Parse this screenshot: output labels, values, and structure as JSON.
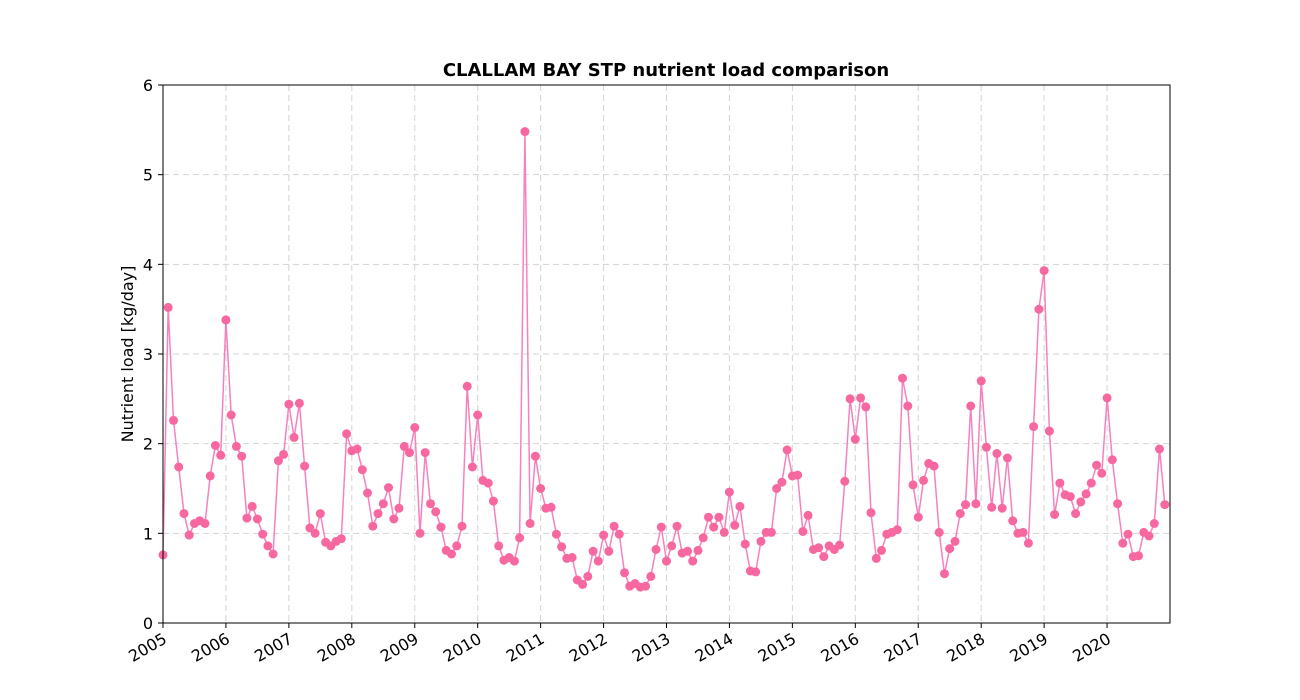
{
  "chart_data": {
    "type": "line",
    "title": "CLALLAM BAY STP nutrient load comparison",
    "xlabel": "",
    "ylabel": "Nutrient load [kg/day]",
    "ylim": [
      0,
      6
    ],
    "xlim": [
      "2005-01",
      "2021-01"
    ],
    "yticks": [
      "0",
      "1",
      "2",
      "3",
      "4",
      "5",
      "6"
    ],
    "xticks": [
      "2005",
      "2006",
      "2007",
      "2008",
      "2009",
      "2010",
      "2011",
      "2012",
      "2013",
      "2014",
      "2015",
      "2016",
      "2017",
      "2018",
      "2019",
      "2020"
    ],
    "grid": true,
    "line_color": "#f781bf",
    "marker_color": "#f768a1",
    "series": [
      {
        "x": [
          "2005-01",
          "2005-02",
          "2005-03",
          "2005-04",
          "2005-05",
          "2005-06",
          "2005-07",
          "2005-08",
          "2005-09",
          "2005-10",
          "2005-11",
          "2005-12",
          "2006-01",
          "2006-02",
          "2006-03",
          "2006-04",
          "2006-05",
          "2006-06",
          "2006-07",
          "2006-08",
          "2006-09",
          "2006-10",
          "2006-11",
          "2006-12",
          "2007-01",
          "2007-02",
          "2007-03",
          "2007-04",
          "2007-05",
          "2007-06",
          "2007-07",
          "2007-08",
          "2007-09",
          "2007-10",
          "2007-11",
          "2007-12",
          "2008-01",
          "2008-02",
          "2008-03",
          "2008-04",
          "2008-05",
          "2008-06",
          "2008-07",
          "2008-08",
          "2008-09",
          "2008-10",
          "2008-11",
          "2008-12",
          "2009-01",
          "2009-02",
          "2009-03",
          "2009-04",
          "2009-05",
          "2009-06",
          "2009-07",
          "2009-08",
          "2009-09",
          "2009-10",
          "2009-11",
          "2009-12",
          "2010-01",
          "2010-02",
          "2010-03",
          "2010-04",
          "2010-05",
          "2010-06",
          "2010-07",
          "2010-08",
          "2010-09",
          "2010-10",
          "2010-11",
          "2010-12",
          "2011-01",
          "2011-02",
          "2011-03",
          "2011-04",
          "2011-05",
          "2011-06",
          "2011-07",
          "2011-08",
          "2011-09",
          "2011-10",
          "2011-11",
          "2011-12",
          "2012-01",
          "2012-02",
          "2012-03",
          "2012-04",
          "2012-05",
          "2012-06",
          "2012-07",
          "2012-08",
          "2012-09",
          "2012-10",
          "2012-11",
          "2012-12",
          "2013-01",
          "2013-02",
          "2013-03",
          "2013-04",
          "2013-05",
          "2013-06",
          "2013-07",
          "2013-08",
          "2013-09",
          "2013-10",
          "2013-11",
          "2013-12",
          "2014-01",
          "2014-02",
          "2014-03",
          "2014-04",
          "2014-05",
          "2014-06",
          "2014-07",
          "2014-08",
          "2014-09",
          "2014-10",
          "2014-11",
          "2014-12",
          "2015-01",
          "2015-02",
          "2015-03",
          "2015-04",
          "2015-05",
          "2015-06",
          "2015-07",
          "2015-08",
          "2015-09",
          "2015-10",
          "2015-11",
          "2015-12",
          "2016-01",
          "2016-02",
          "2016-03",
          "2016-04",
          "2016-05",
          "2016-06",
          "2016-07",
          "2016-08",
          "2016-09",
          "2016-10",
          "2016-11",
          "2016-12",
          "2017-01",
          "2017-02",
          "2017-03",
          "2017-04",
          "2017-05",
          "2017-06",
          "2017-07",
          "2017-08",
          "2017-09",
          "2017-10",
          "2017-11",
          "2017-12",
          "2018-01",
          "2018-02",
          "2018-03",
          "2018-04",
          "2018-05",
          "2018-06",
          "2018-07",
          "2018-08",
          "2018-09",
          "2018-10",
          "2018-11",
          "2018-12",
          "2019-01",
          "2019-02",
          "2019-03",
          "2019-04",
          "2019-05",
          "2019-06",
          "2019-07",
          "2019-08",
          "2019-09",
          "2019-10",
          "2019-11",
          "2019-12",
          "2020-01",
          "2020-02",
          "2020-03",
          "2020-04",
          "2020-05",
          "2020-06",
          "2020-07",
          "2020-08",
          "2020-09",
          "2020-10",
          "2020-11",
          "2020-12"
        ],
        "values": [
          0.76,
          3.52,
          2.26,
          1.74,
          1.22,
          0.98,
          1.11,
          1.14,
          1.11,
          1.64,
          1.98,
          1.87,
          3.38,
          2.32,
          1.97,
          1.86,
          1.17,
          1.3,
          1.16,
          0.99,
          0.86,
          0.77,
          1.81,
          1.88,
          2.44,
          2.07,
          2.45,
          1.75,
          1.06,
          1.0,
          1.22,
          0.9,
          0.86,
          0.91,
          0.94,
          2.11,
          1.92,
          1.94,
          1.71,
          1.45,
          1.08,
          1.22,
          1.33,
          1.51,
          1.16,
          1.28,
          1.97,
          1.9,
          2.18,
          1.0,
          1.9,
          1.33,
          1.24,
          1.07,
          0.81,
          0.77,
          0.86,
          1.08,
          2.64,
          1.74,
          2.32,
          1.59,
          1.56,
          1.36,
          0.86,
          0.7,
          0.73,
          0.69,
          0.95,
          5.48,
          1.11,
          1.86,
          1.5,
          1.28,
          1.29,
          0.99,
          0.85,
          0.72,
          0.73,
          0.48,
          0.43,
          0.52,
          0.8,
          0.69,
          0.98,
          0.8,
          1.08,
          0.99,
          0.56,
          0.41,
          0.44,
          0.4,
          0.41,
          0.52,
          0.82,
          1.07,
          0.69,
          0.86,
          1.08,
          0.78,
          0.8,
          0.69,
          0.81,
          0.95,
          1.18,
          1.07,
          1.18,
          1.01,
          1.46,
          1.09,
          1.3,
          0.88,
          0.58,
          0.57,
          0.91,
          1.01,
          1.01,
          1.5,
          1.57,
          1.93,
          1.64,
          1.65,
          1.02,
          1.2,
          0.82,
          0.84,
          0.74,
          0.86,
          0.82,
          0.87,
          1.58,
          2.5,
          2.05,
          2.51,
          2.41,
          1.23,
          0.72,
          0.81,
          0.99,
          1.01,
          1.04,
          2.73,
          2.42,
          1.54,
          1.18,
          1.59,
          1.78,
          1.75,
          1.01,
          0.55,
          0.83,
          0.91,
          1.22,
          1.32,
          2.42,
          1.33,
          2.7,
          1.96,
          1.29,
          1.89,
          1.28,
          1.84,
          1.14,
          1.0,
          1.01,
          0.89,
          2.19,
          3.5,
          3.93,
          2.14,
          1.21,
          1.56,
          1.43,
          1.41,
          1.22,
          1.35,
          1.44,
          1.56,
          1.76,
          1.67,
          2.51,
          1.82,
          1.33,
          0.89,
          0.99,
          0.74,
          0.75,
          1.01,
          0.97,
          1.11,
          1.94,
          1.32
        ]
      }
    ]
  }
}
